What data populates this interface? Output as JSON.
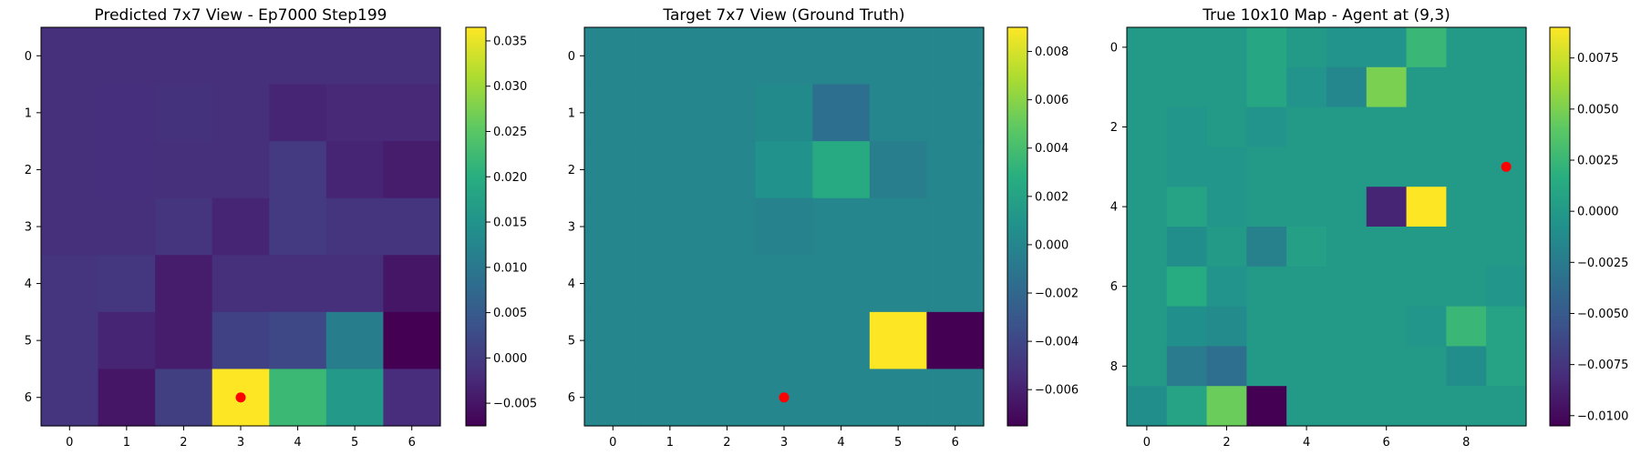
{
  "chart_data": [
    {
      "type": "heatmap",
      "title": "Predicted 7x7 View - Ep7000 Step199",
      "rows": 7,
      "cols": 7,
      "x_ticks": [
        0,
        1,
        2,
        3,
        4,
        5,
        6
      ],
      "y_ticks": [
        0,
        1,
        2,
        3,
        4,
        5,
        6
      ],
      "vmin": -0.0075,
      "vmax": 0.0365,
      "colorbar_ticks": [
        -0.005,
        0.0,
        0.005,
        0.01,
        0.015,
        0.02,
        0.025,
        0.03,
        0.035
      ],
      "colorbar_tick_labels": [
        "−0.005",
        "0.000",
        "0.005",
        "0.010",
        "0.015",
        "0.020",
        "0.025",
        "0.030",
        "0.035"
      ],
      "colormap": "viridis",
      "values": [
        [
          -0.0015,
          -0.0015,
          -0.0015,
          -0.0015,
          -0.0015,
          -0.0015,
          -0.0015
        ],
        [
          -0.0015,
          -0.0017,
          -0.0013,
          -0.0016,
          -0.003,
          -0.0025,
          -0.0025
        ],
        [
          -0.0015,
          -0.0017,
          -0.0015,
          -0.0015,
          0.0,
          -0.003,
          -0.004
        ],
        [
          -0.0015,
          -0.0015,
          -0.001,
          -0.003,
          0.0,
          -0.001,
          -0.001
        ],
        [
          -0.001,
          -0.0005,
          -0.004,
          -0.0015,
          -0.0015,
          -0.0015,
          -0.005
        ],
        [
          -0.001,
          -0.003,
          -0.004,
          0.001,
          0.002,
          0.011,
          -0.0075
        ],
        [
          -0.001,
          -0.005,
          0.0005,
          0.0365,
          0.022,
          0.016,
          -0.002
        ]
      ],
      "marker": {
        "x": 3,
        "y": 6,
        "color": "#ff0000"
      }
    },
    {
      "type": "heatmap",
      "title": "Target 7x7 View (Ground Truth)",
      "rows": 7,
      "cols": 7,
      "x_ticks": [
        0,
        1,
        2,
        3,
        4,
        5,
        6
      ],
      "y_ticks": [
        0,
        1,
        2,
        3,
        4,
        5,
        6
      ],
      "vmin": -0.0075,
      "vmax": 0.009,
      "colorbar_ticks": [
        -0.006,
        -0.004,
        -0.002,
        0.0,
        0.002,
        0.004,
        0.006,
        0.008
      ],
      "colorbar_tick_labels": [
        "−0.006",
        "−0.004",
        "−0.002",
        "0.000",
        "0.002",
        "0.004",
        "0.006",
        "0.008"
      ],
      "colormap": "viridis",
      "values": [
        [
          0.0,
          0.0,
          0.0,
          0.0,
          0.0,
          0.0,
          0.0
        ],
        [
          0.0,
          0.0,
          0.0,
          0.0003,
          -0.0015,
          0.0,
          0.0
        ],
        [
          0.0,
          0.0,
          0.0,
          0.0008,
          0.0025,
          -0.0005,
          0.0
        ],
        [
          0.0,
          0.0,
          0.0,
          -0.0002,
          0.0,
          0.0,
          0.0
        ],
        [
          0.0,
          0.0,
          0.0,
          0.0,
          0.0,
          0.0,
          0.0
        ],
        [
          0.0,
          0.0,
          0.0,
          0.0,
          0.0,
          0.009,
          -0.0075
        ],
        [
          0.0,
          0.0,
          0.0,
          0.0,
          0.0,
          0.0,
          0.0
        ]
      ],
      "marker": {
        "x": 3,
        "y": 6,
        "color": "#ff0000"
      }
    },
    {
      "type": "heatmap",
      "title": "True 10x10 Map - Agent at (9,3)",
      "rows": 10,
      "cols": 10,
      "x_ticks": [
        0,
        2,
        4,
        6,
        8
      ],
      "y_ticks": [
        0,
        2,
        4,
        6,
        8
      ],
      "vmin": -0.0105,
      "vmax": 0.009,
      "colorbar_ticks": [
        -0.01,
        -0.0075,
        -0.005,
        -0.0025,
        0.0,
        0.0025,
        0.005,
        0.0075
      ],
      "colorbar_tick_labels": [
        "−0.0100",
        "−0.0075",
        "−0.0050",
        "−0.0025",
        "0.0000",
        "0.0025",
        "0.0050",
        "0.0075"
      ],
      "colormap": "viridis",
      "values": [
        [
          0.0,
          0.0,
          0.0,
          0.001,
          0.0,
          -0.0005,
          -0.0005,
          0.0025,
          0.0,
          0.0
        ],
        [
          0.0,
          0.0,
          0.0,
          0.001,
          -0.0005,
          -0.0015,
          0.005,
          0.0,
          0.0,
          0.0
        ],
        [
          0.0,
          -0.0003,
          0.0,
          -0.0005,
          0.0,
          0.0,
          0.0,
          0.0,
          0.0,
          0.0
        ],
        [
          0.0,
          -0.0003,
          -0.0003,
          0.0,
          0.0,
          0.0,
          0.0,
          0.0,
          0.0,
          0.0
        ],
        [
          0.0,
          0.0008,
          -0.0003,
          0.0,
          0.0,
          0.0,
          -0.0085,
          0.009,
          0.0,
          0.0
        ],
        [
          0.0,
          -0.001,
          0.0,
          -0.002,
          0.0005,
          0.0,
          0.0,
          0.0,
          0.0,
          0.0
        ],
        [
          0.0,
          0.0015,
          -0.0005,
          0.0,
          0.0,
          0.0,
          0.0,
          0.0,
          0.0,
          -0.0003
        ],
        [
          0.0,
          -0.0008,
          -0.0012,
          0.0,
          0.0,
          0.0,
          0.0,
          -0.0003,
          0.0025,
          0.0008
        ],
        [
          0.0,
          -0.0025,
          -0.0035,
          0.0,
          0.0,
          0.0,
          0.0,
          0.0,
          -0.001,
          0.0008
        ],
        [
          -0.001,
          0.0008,
          0.0045,
          -0.0105,
          0.0,
          0.0,
          0.0,
          0.0,
          0.0,
          0.0
        ]
      ],
      "marker": {
        "x": 9,
        "y": 3,
        "color": "#ff0000"
      }
    }
  ]
}
